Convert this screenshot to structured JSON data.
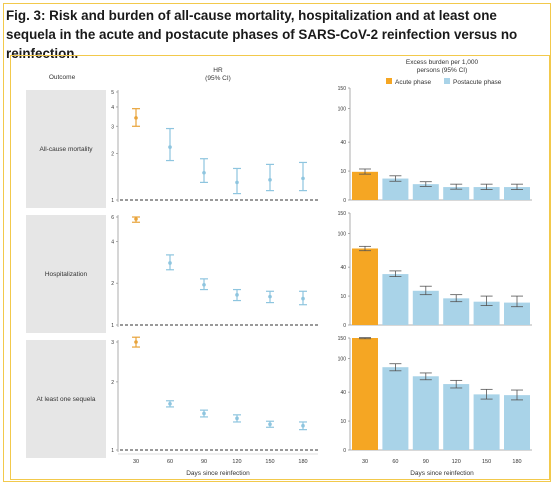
{
  "figure": {
    "title": "Fig. 3: Risk and burden of all-cause mortality, hospitalization and at least one sequela in the acute and postacute phases of SARS-CoV-2 reinfection versus no reinfection."
  },
  "headers": {
    "outcome": "Outcome",
    "hr": "HR",
    "hr_ci": "(95% CI)",
    "burden": "Excess burden per 1,000",
    "burden_ci": "persons (95% CI)",
    "legend_acute": "Acute phase",
    "legend_post": "Postacute phase",
    "xlabel": "Days since reinfection"
  },
  "colors": {
    "acute": "#f5a623",
    "postacute": "#a9d3e8",
    "postacute_line": "#8ec5df",
    "acute_line": "#e8a33a",
    "panel": "#e6e6e6"
  },
  "chart_data": [
    {
      "type": "scatter",
      "outcome": "All-cause mortality",
      "x": [
        30,
        60,
        90,
        120,
        150,
        180
      ],
      "values": [
        3.4,
        2.2,
        1.5,
        1.3,
        1.35,
        1.38
      ],
      "lower": [
        3.0,
        1.8,
        1.3,
        1.1,
        1.15,
        1.15
      ],
      "upper": [
        3.9,
        2.9,
        1.85,
        1.6,
        1.7,
        1.75
      ],
      "yticks": [
        1,
        2,
        3,
        4,
        5
      ],
      "ylim": [
        1,
        5
      ],
      "reference": 1,
      "phase": [
        "acute",
        "postacute",
        "postacute",
        "postacute",
        "postacute",
        "postacute"
      ]
    },
    {
      "type": "scatter",
      "outcome": "Hospitalization",
      "x": [
        30,
        60,
        90,
        120,
        150,
        180
      ],
      "values": [
        5.8,
        2.8,
        1.95,
        1.65,
        1.6,
        1.55
      ],
      "lower": [
        5.5,
        2.5,
        1.8,
        1.5,
        1.45,
        1.4
      ],
      "upper": [
        6.0,
        3.2,
        2.15,
        1.8,
        1.75,
        1.75
      ],
      "yticks": [
        1,
        2,
        4,
        6
      ],
      "ylim": [
        1,
        6
      ],
      "reference": 1,
      "phase": [
        "acute",
        "postacute",
        "postacute",
        "postacute",
        "postacute",
        "postacute"
      ]
    },
    {
      "type": "scatter",
      "outcome": "At least one sequela",
      "x": [
        30,
        60,
        90,
        120,
        150,
        180
      ],
      "values": [
        3.0,
        1.6,
        1.45,
        1.38,
        1.3,
        1.28
      ],
      "lower": [
        2.85,
        1.55,
        1.4,
        1.33,
        1.26,
        1.23
      ],
      "upper": [
        3.15,
        1.65,
        1.5,
        1.43,
        1.34,
        1.33
      ],
      "yticks": [
        1,
        2,
        3
      ],
      "ylim": [
        1,
        3
      ],
      "reference": 1,
      "phase": [
        "acute",
        "postacute",
        "postacute",
        "postacute",
        "postacute",
        "postacute"
      ]
    },
    {
      "type": "bar",
      "outcome": "All-cause mortality",
      "categories": [
        30,
        60,
        90,
        120,
        150,
        180
      ],
      "values": [
        9.5,
        5.5,
        3.0,
        2.0,
        2.0,
        2.0
      ],
      "lower": [
        8.0,
        4.2,
        2.2,
        1.4,
        1.3,
        1.3
      ],
      "upper": [
        11.5,
        7.0,
        4.0,
        3.0,
        3.0,
        3.0
      ],
      "yticks": [
        0,
        10,
        40,
        100,
        150
      ],
      "ylim": [
        0,
        150
      ],
      "scale": "sqrt",
      "phase": [
        "acute",
        "postacute",
        "postacute",
        "postacute",
        "postacute",
        "postacute"
      ]
    },
    {
      "type": "bar",
      "outcome": "Hospitalization",
      "categories": [
        30,
        60,
        90,
        120,
        150,
        180
      ],
      "values": [
        70,
        31,
        14,
        8.5,
        6.5,
        6.0
      ],
      "lower": [
        66,
        28,
        11,
        6.5,
        4.5,
        4.0
      ],
      "upper": [
        74,
        35,
        18,
        11,
        10,
        10
      ],
      "yticks": [
        0,
        10,
        40,
        100,
        150
      ],
      "ylim": [
        0,
        150
      ],
      "scale": "sqrt",
      "phase": [
        "acute",
        "postacute",
        "postacute",
        "postacute",
        "postacute",
        "postacute"
      ]
    },
    {
      "type": "bar",
      "outcome": "At least one sequela",
      "categories": [
        30,
        60,
        90,
        120,
        150,
        180
      ],
      "values": [
        150,
        82,
        65,
        52,
        37,
        36
      ],
      "lower": [
        148,
        75,
        59,
        46,
        31,
        30
      ],
      "upper": [
        151,
        89,
        71,
        58,
        44,
        43
      ],
      "yticks": [
        0,
        10,
        40,
        100,
        150
      ],
      "ylim": [
        0,
        150
      ],
      "scale": "sqrt",
      "phase": [
        "acute",
        "postacute",
        "postacute",
        "postacute",
        "postacute",
        "postacute"
      ]
    }
  ]
}
